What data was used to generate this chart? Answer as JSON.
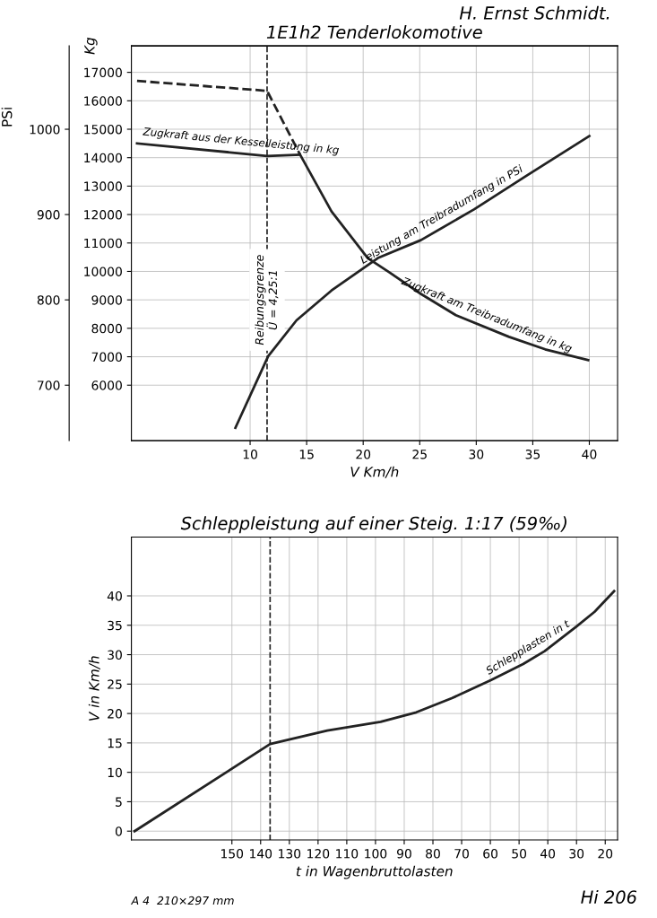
{
  "chart_data": [
    {
      "type": "line",
      "title": "1E1h2 Tenderlokomotive",
      "xlabel": "V Km/h",
      "ylabel": "Kg",
      "y2label": "PSi",
      "xlim": [
        -0.5,
        42.5
      ],
      "xticks": [
        10,
        15,
        20,
        25,
        30,
        35,
        40
      ],
      "ylim": [
        4050,
        17930
      ],
      "yticks": [
        6000,
        7000,
        8000,
        9000,
        10000,
        11000,
        12000,
        13000,
        14000,
        15000,
        16000,
        17000
      ],
      "y2lim": [
        635,
        1097.7
      ],
      "y2ticks": [
        700,
        800,
        900,
        1000
      ],
      "grid": true,
      "legend": false,
      "series": [
        {
          "color": "#222222",
          "line_style": "dashed",
          "x": [
            0,
            11.5,
            14.4
          ],
          "values": [
            16700,
            16350,
            14120
          ]
        },
        {
          "name": "Zugkraft aus der Kesselleistung in kg",
          "color": "#222222",
          "line_style": "solid",
          "x": [
            0,
            11.5,
            14.4
          ],
          "values": [
            14500,
            14060,
            14100
          ]
        },
        {
          "name": "Zugkraft am Treibradumfang in kg",
          "color": "#222222",
          "line_style": "solid",
          "x": [
            14.4,
            17.2,
            20.4,
            22.3,
            25.1,
            28.2,
            32.9,
            36.1,
            39.9
          ],
          "values": [
            14120,
            12110,
            10470,
            9970,
            9210,
            8460,
            7700,
            7260,
            6880
          ]
        },
        {
          "name": "Leistung am Treibradumfang in PSi",
          "color": "#222222",
          "line_style": "solid",
          "axis": "y2",
          "x": [
            8.7,
            11.6,
            14.1,
            17.2,
            21.3,
            25.1,
            29.8,
            34.5,
            40
          ],
          "values": [
            650,
            734,
            776,
            811,
            849,
            870,
            906,
            946,
            992
          ]
        }
      ],
      "ref_lines": [
        {
          "axis": "x",
          "value": 11.5,
          "color": "#222222",
          "line_style": "dashed"
        }
      ],
      "annotations": [
        "H. Ernst Schmidt.",
        {
          "text": "Reibungsgrenze\nÜ = 4,25:1",
          "x": 11.5,
          "y": 9000
        }
      ]
    },
    {
      "type": "line",
      "title": "Schleppleistung auf einer Steig. 1:17 (59‰)",
      "xlabel": "t in Wagenbruttolasten",
      "ylabel": "V in Km/h",
      "xlim": [
        185,
        15.7
      ],
      "xticks": [
        150,
        140,
        130,
        120,
        110,
        100,
        90,
        80,
        70,
        60,
        50,
        40,
        30,
        20
      ],
      "ylim": [
        -1.5,
        50
      ],
      "yticks": [
        0,
        5,
        10,
        15,
        20,
        25,
        30,
        35,
        40
      ],
      "grid": true,
      "legend": false,
      "series": [
        {
          "name": "Schlepplasten in t",
          "color": "#222222",
          "line_style": "solid",
          "x": [
            183.9,
            136.7,
            116.8,
            98.2,
            85.8,
            73.4,
            59.7,
            48.6,
            41.1,
            30,
            23.7,
            16.9
          ],
          "values": [
            0,
            14.8,
            17.1,
            18.6,
            20.2,
            22.6,
            25.7,
            28.4,
            30.6,
            34.8,
            37.3,
            40.8
          ]
        }
      ],
      "ref_lines": [
        {
          "axis": "x",
          "value": 136.7,
          "color": "#222222",
          "line_style": "dashed"
        }
      ],
      "annotations": [
        "A 4  210×297 mm",
        "Hi 206"
      ]
    }
  ]
}
